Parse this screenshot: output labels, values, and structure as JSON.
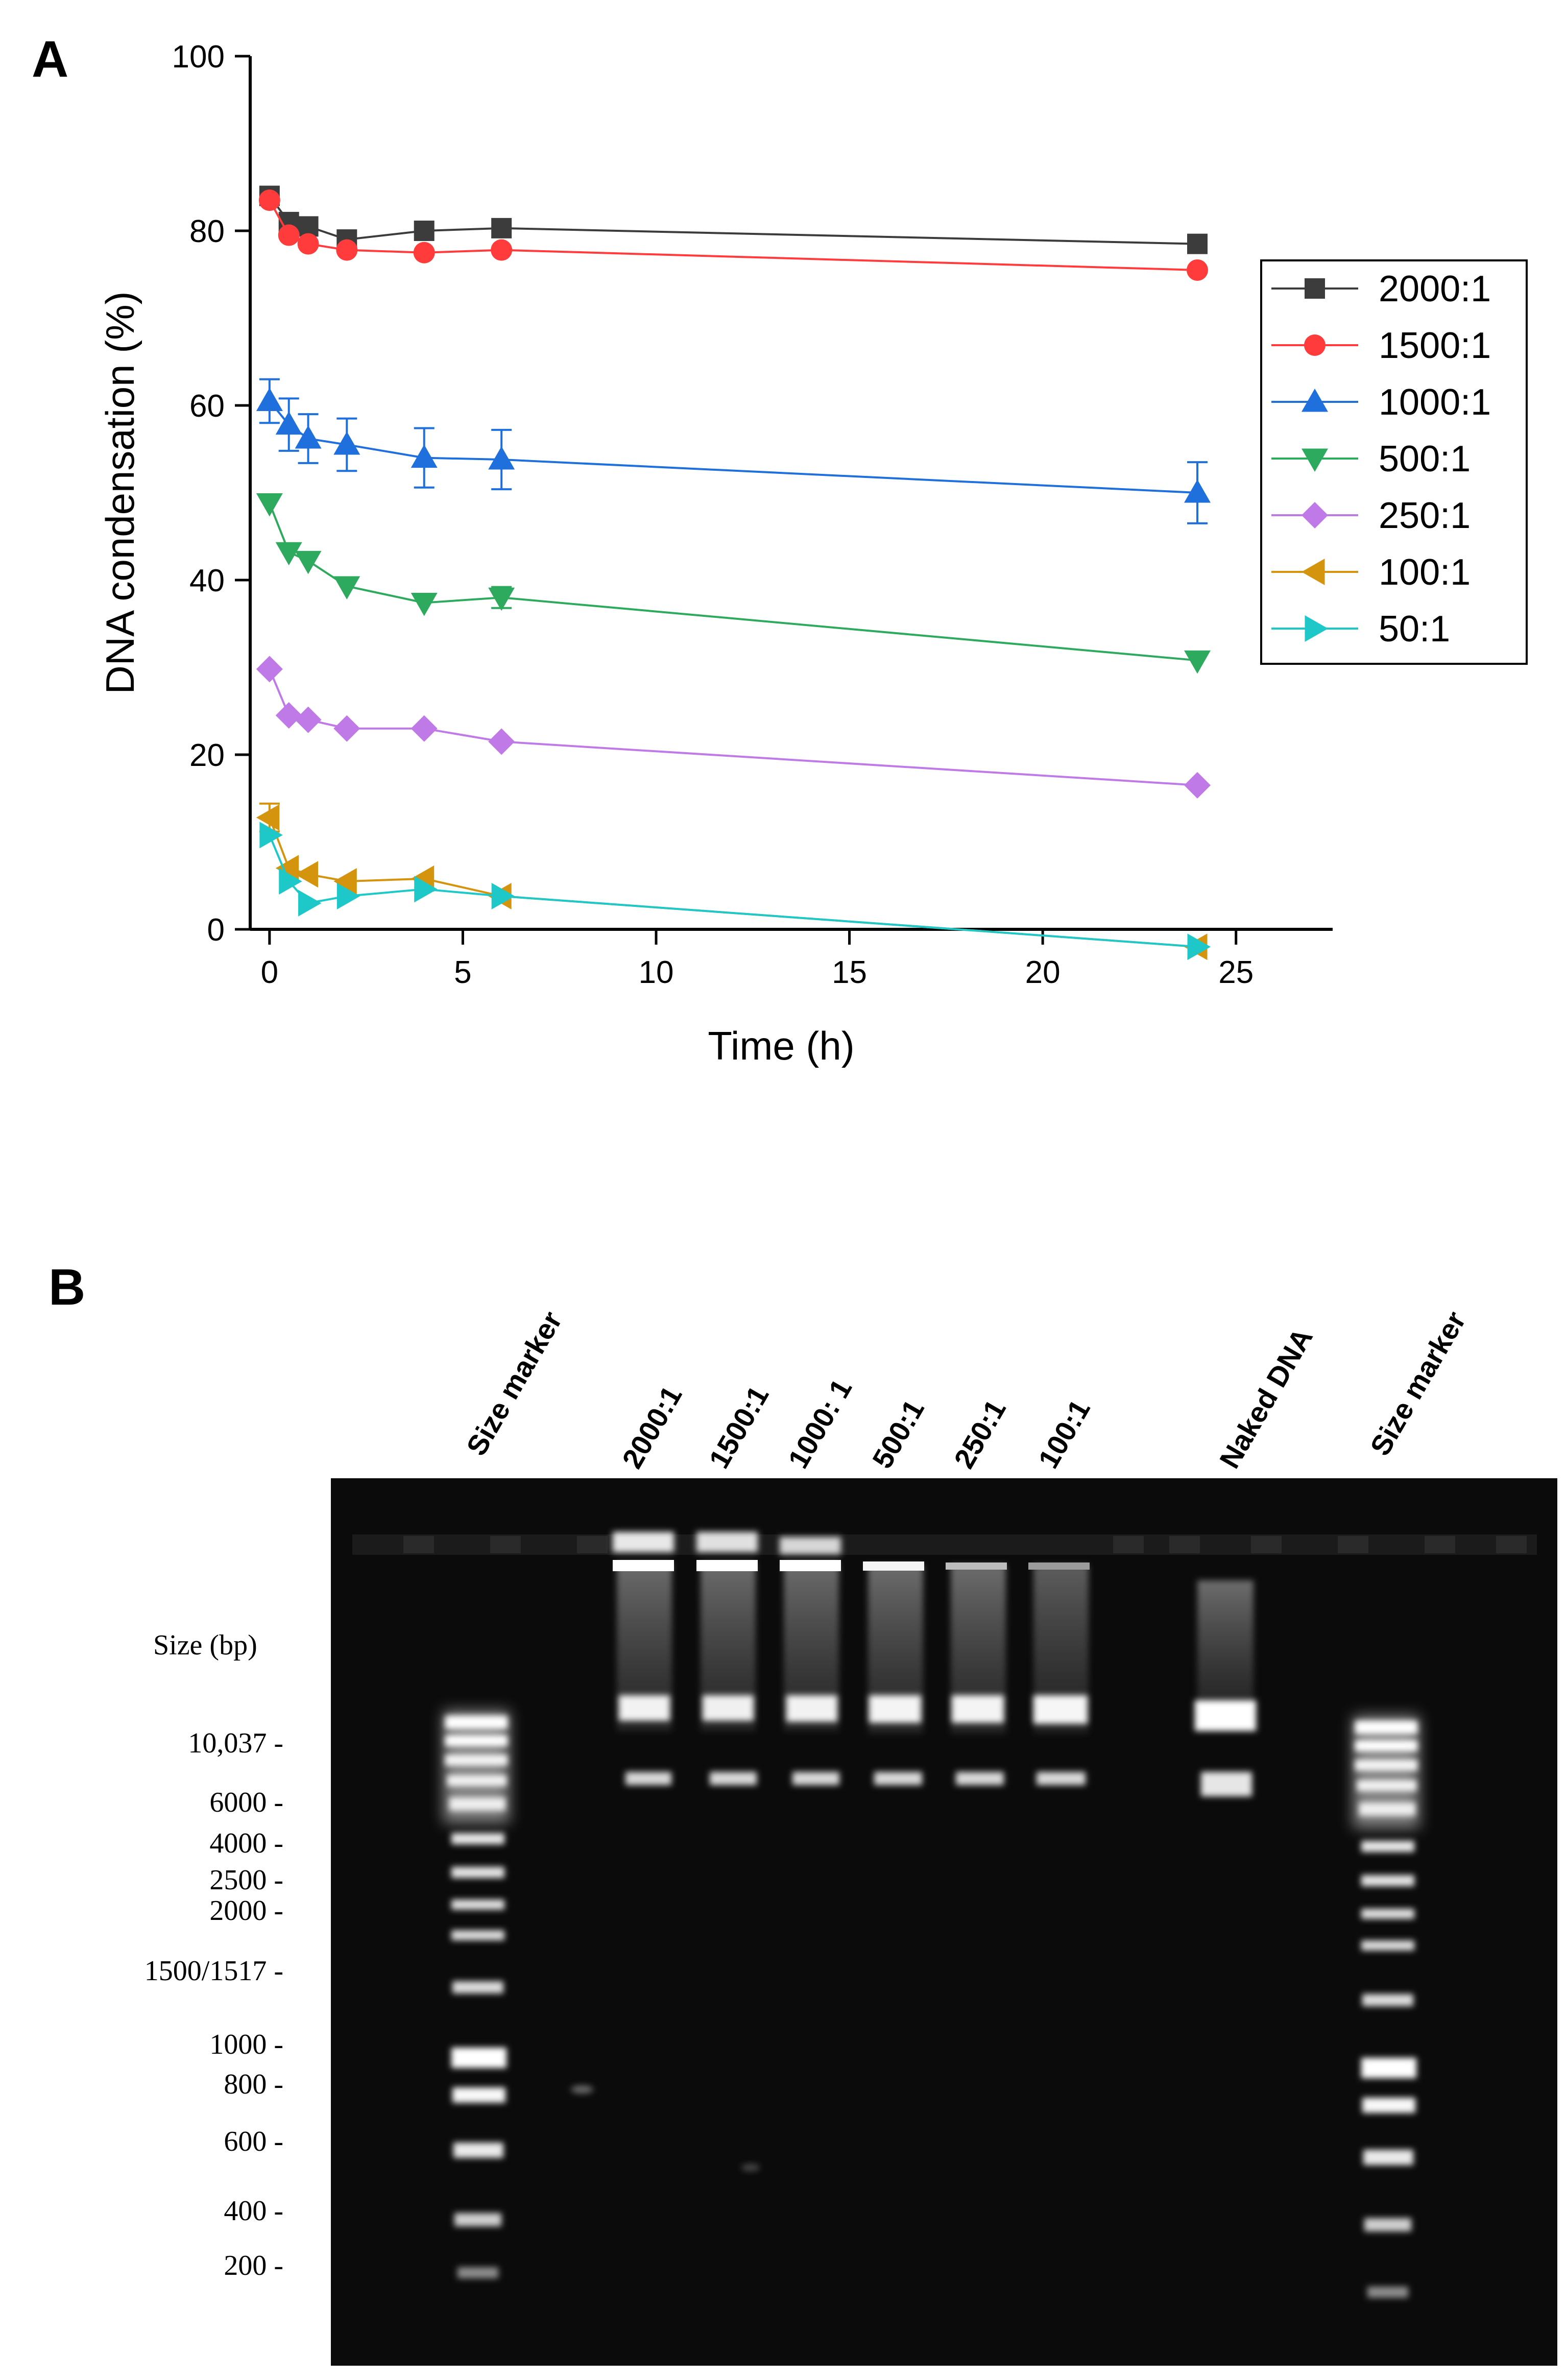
{
  "chart_data": [
    {
      "panel": "A",
      "type": "line",
      "title": "",
      "xlabel": "Time (h)",
      "ylabel": "DNA condensation (%)",
      "xlim": [
        -0.5,
        27.5
      ],
      "ylim": [
        0,
        100
      ],
      "xticks": [
        0,
        5,
        10,
        15,
        20,
        25
      ],
      "yticks": [
        0,
        20,
        40,
        60,
        80,
        100
      ],
      "x": [
        0,
        0.5,
        1,
        2,
        4,
        6,
        24
      ],
      "legend_position": "right",
      "series": [
        {
          "name": "2000:1",
          "color": "#3c3c3c",
          "marker": "square",
          "values": [
            84,
            81,
            80.5,
            79,
            80,
            80.3,
            78.5
          ],
          "errors": [
            0.5,
            0.5,
            0.5,
            0.5,
            0.5,
            0.5,
            0.5
          ]
        },
        {
          "name": "1500:1",
          "color": "#ff3b3b",
          "marker": "circle",
          "values": [
            83.5,
            79.5,
            78.5,
            77.8,
            77.5,
            77.8,
            75.5
          ],
          "errors": [
            0.5,
            0.5,
            0.5,
            0.5,
            0.5,
            0.5,
            0.5
          ]
        },
        {
          "name": "1000:1",
          "color": "#1f6fdc",
          "marker": "triangle-up",
          "values": [
            60.5,
            57.8,
            56.2,
            55.5,
            54,
            53.8,
            50
          ],
          "errors": [
            2.5,
            3,
            2.8,
            3,
            3.4,
            3.4,
            3.5
          ]
        },
        {
          "name": "500:1",
          "color": "#2eaa5e",
          "marker": "triangle-down",
          "values": [
            48.8,
            43.2,
            42.2,
            39.3,
            37.4,
            38,
            30.8
          ],
          "errors": [
            0.6,
            0.8,
            0.6,
            0.6,
            0.6,
            1.2,
            0.8
          ]
        },
        {
          "name": "250:1",
          "color": "#c07ae8",
          "marker": "diamond",
          "values": [
            29.8,
            24.5,
            24,
            23,
            23,
            21.5,
            16.5
          ],
          "errors": [
            0.5,
            0.5,
            0.5,
            0.5,
            0.8,
            0.5,
            0.8
          ]
        },
        {
          "name": "100:1",
          "color": "#d4940e",
          "marker": "triangle-left",
          "values": [
            12.8,
            7,
            6.3,
            5.5,
            5.8,
            3.8,
            -2
          ],
          "errors": [
            1.6,
            0.6,
            0.6,
            0.6,
            0.6,
            0.6,
            0.5
          ]
        },
        {
          "name": "50:1",
          "color": "#1ec8c8",
          "marker": "triangle-right",
          "values": [
            10.8,
            5.5,
            3,
            3.8,
            4.6,
            3.8,
            -2
          ],
          "errors": [
            0.8,
            0.6,
            0.6,
            0.6,
            0.6,
            0.6,
            0.5
          ]
        }
      ]
    }
  ],
  "panel_a_label": "A",
  "panel_b_label": "B",
  "gel": {
    "lanes": [
      {
        "label": "Size marker"
      },
      {
        "label": "2000:1"
      },
      {
        "label": "1500:1"
      },
      {
        "label": "1000: 1"
      },
      {
        "label": "500:1"
      },
      {
        "label": "250:1"
      },
      {
        "label": "100:1"
      },
      {
        "label": "Naked DNA"
      },
      {
        "label": "Size marker"
      }
    ],
    "size_title": "Size (bp)",
    "size_labels": [
      "10,037 -",
      "6000 -",
      "4000 -",
      "2500 -",
      "2000 -",
      "1500/1517 -",
      "1000 -",
      "800 -",
      "600 -",
      "400 -",
      "200 -"
    ]
  }
}
